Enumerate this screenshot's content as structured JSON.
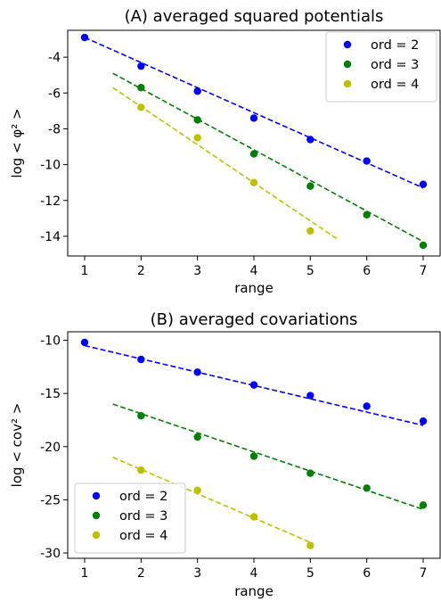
{
  "chart_data": [
    {
      "type": "scatter",
      "title": "(A) averaged squared potentials",
      "xlabel": "range",
      "ylabel": "log < φ² >",
      "xlim": [
        0.7,
        7.3
      ],
      "ylim": [
        -15.1,
        -2.5
      ],
      "xticks": [
        1,
        2,
        3,
        4,
        5,
        6,
        7
      ],
      "yticks": [
        -4,
        -6,
        -8,
        -10,
        -12,
        -14
      ],
      "legend": "top-right",
      "series": [
        {
          "name": "ord = 2",
          "color": "#0000ff",
          "x": [
            1,
            2,
            3,
            4,
            5,
            6,
            7
          ],
          "y": [
            -2.9,
            -4.5,
            -5.9,
            -7.4,
            -8.6,
            -9.8,
            -11.1
          ],
          "fit": {
            "x": [
              1,
              7
            ],
            "y": [
              -2.9,
              -11.3
            ]
          }
        },
        {
          "name": "ord = 3",
          "color": "#008000",
          "x": [
            2,
            3,
            4,
            5,
            6,
            7
          ],
          "y": [
            -5.7,
            -7.5,
            -9.4,
            -11.2,
            -12.8,
            -14.5
          ],
          "fit": {
            "x": [
              1.5,
              7
            ],
            "y": [
              -4.9,
              -14.3
            ]
          }
        },
        {
          "name": "ord = 4",
          "color": "#bfbf00",
          "x": [
            2,
            3,
            4,
            5
          ],
          "y": [
            -6.8,
            -8.5,
            -11.0,
            -13.7
          ],
          "fit": {
            "x": [
              1.5,
              5.5
            ],
            "y": [
              -5.7,
              -14.2
            ]
          }
        }
      ]
    },
    {
      "type": "scatter",
      "title": "(B) averaged covariations",
      "xlabel": "range",
      "ylabel": "log < cov² >",
      "xlim": [
        0.7,
        7.3
      ],
      "ylim": [
        -30.5,
        -9.2
      ],
      "xticks": [
        1,
        2,
        3,
        4,
        5,
        6,
        7
      ],
      "yticks": [
        -10,
        -15,
        -20,
        -25,
        -30
      ],
      "legend": "bottom-left",
      "series": [
        {
          "name": "ord = 2",
          "color": "#0000ff",
          "x": [
            1,
            2,
            3,
            4,
            5,
            6,
            7
          ],
          "y": [
            -10.2,
            -11.8,
            -13.0,
            -14.2,
            -15.2,
            -16.2,
            -17.6
          ],
          "fit": {
            "x": [
              1,
              7
            ],
            "y": [
              -10.5,
              -18.0
            ]
          }
        },
        {
          "name": "ord = 3",
          "color": "#008000",
          "x": [
            2,
            3,
            4,
            5,
            6,
            7
          ],
          "y": [
            -17.1,
            -19.1,
            -20.9,
            -22.5,
            -23.9,
            -25.5
          ],
          "fit": {
            "x": [
              1.5,
              7
            ],
            "y": [
              -16.0,
              -25.9
            ]
          }
        },
        {
          "name": "ord = 4",
          "color": "#bfbf00",
          "x": [
            2,
            3,
            4,
            5
          ],
          "y": [
            -22.2,
            -24.1,
            -26.6,
            -29.3
          ],
          "fit": {
            "x": [
              1.5,
              5
            ],
            "y": [
              -21.0,
              -29.0
            ]
          }
        }
      ]
    }
  ]
}
